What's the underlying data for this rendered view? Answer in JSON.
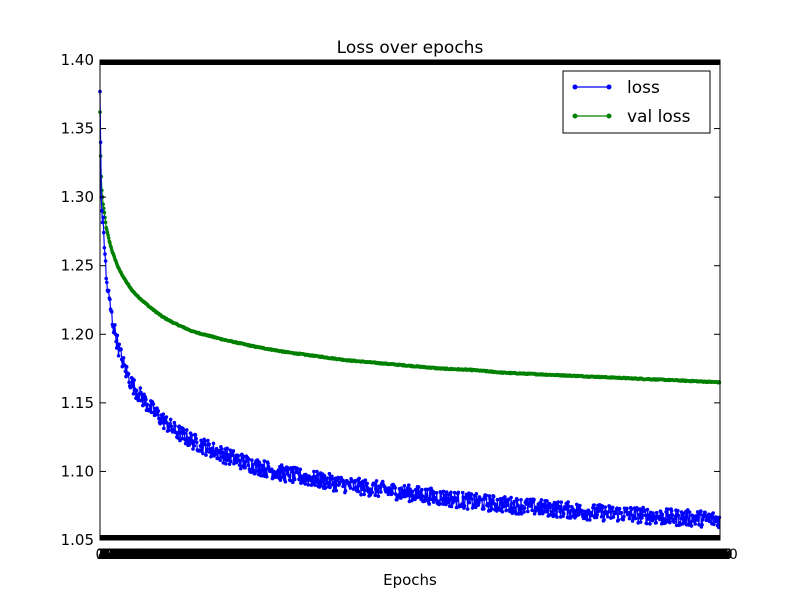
{
  "chart_data": {
    "type": "line",
    "title": "Loss over epochs",
    "xlabel": "Epochs",
    "ylabel": "",
    "xlim": [
      0,
      1000
    ],
    "ylim": [
      1.05,
      1.4
    ],
    "yticks": [
      "1.05",
      "1.10",
      "1.15",
      "1.20",
      "1.25",
      "1.30",
      "1.35",
      "1.40"
    ],
    "grid": false,
    "legend_position": "upper right",
    "x_tick_labels_overlapping": true,
    "series": [
      {
        "name": "loss",
        "color": "#0000ff",
        "marker": "circle",
        "noise": "high",
        "x": [
          0,
          1,
          2,
          3,
          5,
          8,
          10,
          15,
          20,
          30,
          40,
          50,
          60,
          80,
          100,
          120,
          150,
          200,
          250,
          300,
          350,
          400,
          450,
          500,
          550,
          600,
          650,
          700,
          750,
          800,
          850,
          900,
          950,
          999
        ],
        "values": [
          1.377,
          1.34,
          1.3,
          1.29,
          1.28,
          1.26,
          1.24,
          1.225,
          1.21,
          1.19,
          1.175,
          1.165,
          1.158,
          1.147,
          1.138,
          1.13,
          1.122,
          1.112,
          1.104,
          1.098,
          1.094,
          1.09,
          1.087,
          1.084,
          1.081,
          1.078,
          1.076,
          1.074,
          1.072,
          1.07,
          1.069,
          1.067,
          1.066,
          1.065
        ]
      },
      {
        "name": "val loss",
        "color": "#008000",
        "marker": "circle",
        "noise": "low",
        "x": [
          0,
          1,
          2,
          3,
          5,
          8,
          10,
          15,
          20,
          30,
          40,
          50,
          60,
          80,
          100,
          120,
          150,
          200,
          250,
          300,
          350,
          400,
          450,
          500,
          550,
          600,
          650,
          700,
          750,
          800,
          850,
          900,
          950,
          999
        ],
        "values": [
          1.362,
          1.33,
          1.315,
          1.305,
          1.295,
          1.285,
          1.278,
          1.268,
          1.26,
          1.248,
          1.24,
          1.233,
          1.228,
          1.22,
          1.213,
          1.208,
          1.202,
          1.196,
          1.191,
          1.187,
          1.184,
          1.181,
          1.179,
          1.177,
          1.175,
          1.174,
          1.172,
          1.171,
          1.17,
          1.169,
          1.168,
          1.167,
          1.166,
          1.165
        ]
      }
    ]
  }
}
